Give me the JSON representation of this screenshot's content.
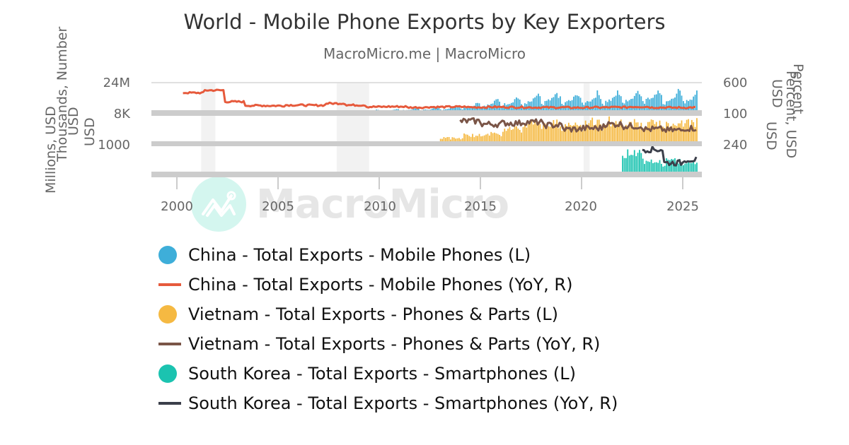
{
  "header": {
    "title": "World - Mobile Phone Exports by Key Exporters",
    "subtitle": "MacroMicro.me | MacroMicro"
  },
  "watermark": {
    "text": "MacroMicro"
  },
  "axes": {
    "left_titles": [
      "Millions, USD",
      "Thousands, Number",
      "USD",
      "USD"
    ],
    "right_titles": [
      "Percent",
      "Percent, USD",
      "USD",
      "USD"
    ],
    "left_ticks": [
      "24M",
      "8K",
      "1000"
    ],
    "right_ticks": [
      "600",
      "100",
      "240"
    ],
    "x_ticks": [
      "2000",
      "2005",
      "2010",
      "2015",
      "2020",
      "2025"
    ]
  },
  "legend": {
    "items": [
      {
        "label": "China - Total Exports - Mobile Phones (L)",
        "type": "dot",
        "color": "#3eaed9"
      },
      {
        "label": "China - Total Exports - Mobile Phones (YoY, R)",
        "type": "line",
        "color": "#e65a3c"
      },
      {
        "label": "Vietnam - Total Exports - Phones & Parts (L)",
        "type": "dot",
        "color": "#f5b942"
      },
      {
        "label": "Vietnam - Total Exports - Phones & Parts (YoY, R)",
        "type": "line",
        "color": "#7a5547"
      },
      {
        "label": "South Korea - Total Exports - Smartphones (L)",
        "type": "dot",
        "color": "#1bc3b0"
      },
      {
        "label": "South Korea - Total Exports - Smartphones (YoY, R)",
        "type": "line",
        "color": "#3b3f4a"
      }
    ]
  },
  "chart_data": {
    "type": "bar",
    "title": "World - Mobile Phone Exports by Key Exporters",
    "subtitle": "MacroMicro.me | MacroMicro",
    "xlabel": "",
    "x_range": [
      1997.5,
      2025.9
    ],
    "x_ticks": [
      2000,
      2005,
      2010,
      2015,
      2020,
      2025
    ],
    "recession_bands": [
      [
        2001.2,
        2001.9
      ],
      [
        2007.9,
        2009.5
      ],
      [
        2020.1,
        2020.4
      ]
    ],
    "panels": [
      {
        "name": "China",
        "left_axis": {
          "label": "Millions, USD",
          "tick": "24M",
          "ylim": [
            0,
            24000
          ]
        },
        "right_axis": {
          "label": "Percent",
          "tick": "600",
          "ylim": [
            -100,
            600
          ]
        },
        "series": [
          {
            "name": "China - Total Exports - Mobile Phones (L)",
            "type": "bar",
            "color": "#3eaed9",
            "start": 2003.75,
            "frequency": "monthly",
            "annual_profile": [
              0.55,
              0.45,
              0.55,
              0.55,
              0.6,
              0.6,
              0.65,
              0.75,
              0.85,
              1.0,
              0.85,
              0.75
            ],
            "annual_peak_millions": [
              600,
              700,
              900,
              1200,
              1500,
              2000,
              2700,
              3500,
              4200,
              5500,
              8000,
              11000,
              13500,
              15000,
              17500,
              17000,
              17500,
              18000,
              20000,
              21500,
              19000,
              20500,
              23000,
              22000,
              21500,
              21000,
              21500
            ]
          },
          {
            "name": "China - Total Exports - Mobile Phones (YoY, R)",
            "type": "line",
            "color": "#e65a3c",
            "start": 2000.3,
            "frequency": "monthly",
            "yearly_approx_percent": [
              360,
              420,
              150,
              60,
              55,
              70,
              65,
              110,
              70,
              30,
              35,
              15,
              25,
              30,
              20,
              25,
              20,
              15,
              15,
              10,
              15,
              20,
              30,
              15,
              10,
              15
            ]
          }
        ]
      },
      {
        "name": "Vietnam",
        "left_axis": {
          "label": "Thousands, Number / USD",
          "tick": "8K",
          "ylim": [
            0,
            8000
          ]
        },
        "right_axis": {
          "label": "Percent, USD",
          "tick": "100",
          "ylim": [
            -50,
            100
          ]
        },
        "series": [
          {
            "name": "Vietnam - Total Exports - Phones & Parts (L)",
            "type": "bar",
            "color": "#f5b942",
            "start": 2013.0,
            "frequency": "monthly",
            "annual_peak_thousands": [
              1800,
              2800,
              3500,
              4800,
              6800,
              6500,
              6700,
              6800,
              7200,
              6600,
              6500,
              6800,
              7400
            ]
          },
          {
            "name": "Vietnam - Total Exports - Phones & Parts (YoY, R)",
            "type": "line",
            "color": "#7a5547",
            "start": 2014.0,
            "frequency": "monthly",
            "yearly_approx_percent": [
              60,
              45,
              50,
              55,
              40,
              20,
              25,
              45,
              35,
              20,
              15,
              25
            ]
          }
        ]
      },
      {
        "name": "South Korea",
        "left_axis": {
          "label": "USD",
          "tick": "1000",
          "ylim": [
            0,
            1000
          ]
        },
        "right_axis": {
          "label": "USD",
          "tick": "240",
          "ylim": [
            -100,
            240
          ]
        },
        "series": [
          {
            "name": "South Korea - Total Exports - Smartphones (L)",
            "type": "bar",
            "color": "#1bc3b0",
            "start": 2022.0,
            "frequency": "monthly",
            "annual_peak_usd": [
              1000,
              600,
              650,
              600
            ]
          },
          {
            "name": "South Korea - Total Exports - Smartphones (YoY, R)",
            "type": "line",
            "color": "#3b3f4a",
            "start": 2023.0,
            "frequency": "monthly",
            "yearly_approx_percent": [
              200,
              40,
              80,
              70
            ]
          }
        ]
      }
    ],
    "legend_position": "bottom"
  }
}
